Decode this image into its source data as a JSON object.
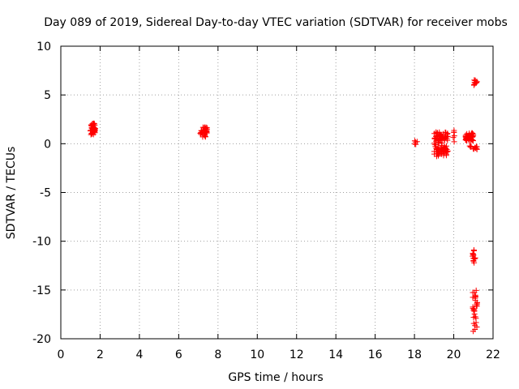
{
  "chart_data": {
    "type": "scatter",
    "title": "Day 089 of 2019, Sidereal Day-to-day VTEC variation (SDTVAR) for receiver mobs",
    "xlabel": "GPS time / hours",
    "ylabel": "SDTVAR / TECUs",
    "xlim": [
      0,
      22
    ],
    "ylim": [
      -20,
      10
    ],
    "x_ticks": [
      "0",
      "2",
      "4",
      "6",
      "8",
      "10",
      "12",
      "14",
      "16",
      "18",
      "20",
      "22"
    ],
    "y_ticks": [
      "10",
      "5",
      "0",
      "-5",
      "-10",
      "-15",
      "-20"
    ],
    "grid": true,
    "marker": "+",
    "marker_color": "#ff0000",
    "clusters": [
      {
        "x_range": [
          1.5,
          1.75
        ],
        "y_range": [
          0.9,
          2.1
        ],
        "count": 40
      },
      {
        "x_range": [
          7.1,
          7.45
        ],
        "y_range": [
          0.7,
          1.7
        ],
        "count": 40
      },
      {
        "x_range": [
          18.0,
          18.15
        ],
        "y_range": [
          -0.7,
          0.9
        ],
        "count": 5
      },
      {
        "x_range": [
          19.0,
          19.7
        ],
        "y_range": [
          -1.3,
          1.2
        ],
        "count": 110
      },
      {
        "x_range": [
          19.9,
          20.05
        ],
        "y_range": [
          0.2,
          1.6
        ],
        "count": 6
      },
      {
        "x_range": [
          20.6,
          21.0
        ],
        "y_range": [
          0.3,
          1.1
        ],
        "count": 50
      },
      {
        "x_range": [
          20.8,
          21.2
        ],
        "y_range": [
          -0.6,
          -0.2
        ],
        "count": 12
      },
      {
        "x_range": [
          21.0,
          21.2
        ],
        "y_range": [
          5.8,
          6.6
        ],
        "count": 15
      },
      {
        "x_range": [
          20.95,
          21.1
        ],
        "y_range": [
          -12.3,
          -10.8
        ],
        "count": 14
      },
      {
        "x_range": [
          20.95,
          21.2
        ],
        "y_range": [
          -19.3,
          -14.9
        ],
        "count": 30
      }
    ]
  }
}
